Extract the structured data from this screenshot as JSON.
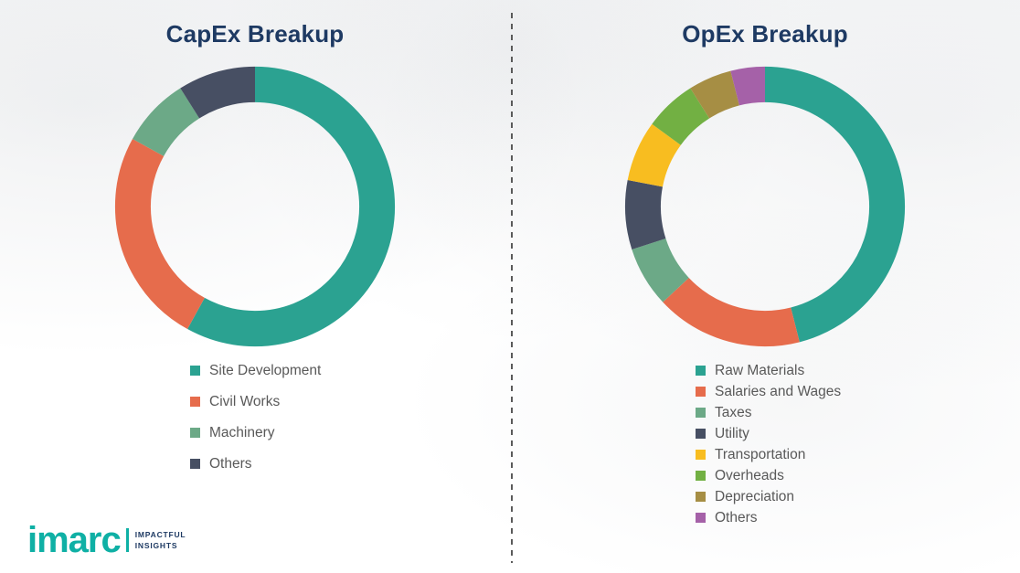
{
  "chart_data": [
    {
      "type": "pie",
      "subtype": "donut",
      "title": "CapEx Breakup",
      "legend_position": "bottom",
      "start_angle_deg": 0,
      "direction": "clockwise",
      "unit": "% (estimated from arc lengths; no data labels shown)",
      "segments": [
        {
          "label": "Site Development",
          "value": 58,
          "color": "#2BA291"
        },
        {
          "label": "Civil Works",
          "value": 25,
          "color": "#E66C4C"
        },
        {
          "label": "Machinery",
          "value": 8,
          "color": "#6CA987"
        },
        {
          "label": "Others",
          "value": 9,
          "color": "#474F63"
        }
      ]
    },
    {
      "type": "pie",
      "subtype": "donut",
      "title": "OpEx Breakup",
      "legend_position": "bottom",
      "start_angle_deg": 0,
      "direction": "clockwise",
      "unit": "% (estimated from arc lengths; no data labels shown)",
      "segments": [
        {
          "label": "Raw Materials",
          "value": 46,
          "color": "#2BA291"
        },
        {
          "label": "Salaries and Wages",
          "value": 17,
          "color": "#E66C4C"
        },
        {
          "label": "Taxes",
          "value": 7,
          "color": "#6CA987"
        },
        {
          "label": "Utility",
          "value": 8,
          "color": "#474F63"
        },
        {
          "label": "Transportation",
          "value": 7,
          "color": "#F8BD20"
        },
        {
          "label": "Overheads",
          "value": 6,
          "color": "#72B043"
        },
        {
          "label": "Depreciation",
          "value": 5,
          "color": "#A68E44"
        },
        {
          "label": "Others",
          "value": 4,
          "color": "#A561A8"
        }
      ]
    }
  ],
  "logo": {
    "brand": "imarc",
    "tagline_line1": "IMPACTFUL",
    "tagline_line2": "INSIGHTS",
    "brand_color": "#0FB0A5"
  },
  "colors": {
    "title": "#1E3A63",
    "legend_text": "#595959",
    "background": "#FFFFFF"
  }
}
